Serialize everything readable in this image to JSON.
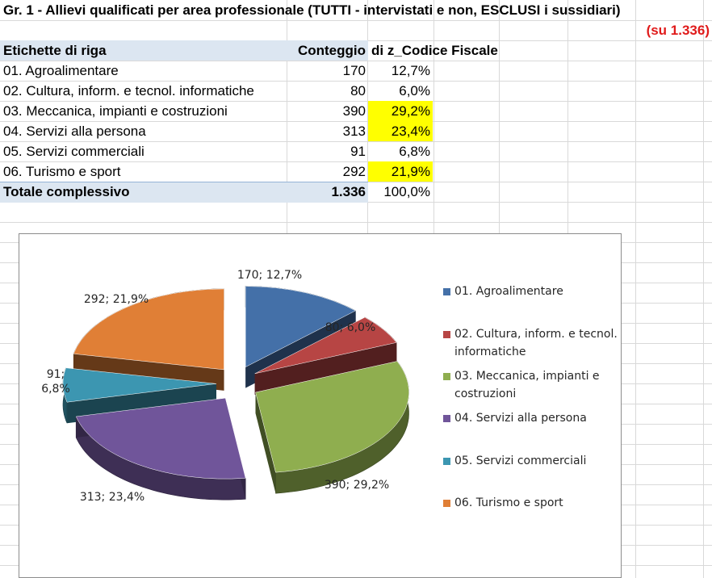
{
  "sheet": {
    "title": "Gr. 1 - Allievi qualificati per area professionale (TUTTI - intervistati e non, ESCLUSI i sussidiari)",
    "subtitle": "(su 1.336)"
  },
  "pivot": {
    "headers": [
      "Etichette di riga",
      "Conteggio",
      "di z_Codice Fiscale"
    ],
    "rows": [
      {
        "label": "01. Agroalimentare",
        "count": "170",
        "pct": "12,7%",
        "highlight": false
      },
      {
        "label": "02. Cultura, inform. e tecnol. informatiche",
        "count": "80",
        "pct": "6,0%",
        "highlight": false
      },
      {
        "label": "03. Meccanica, impianti e costruzioni",
        "count": "390",
        "pct": "29,2%",
        "highlight": true
      },
      {
        "label": "04. Servizi alla persona",
        "count": "313",
        "pct": "23,4%",
        "highlight": true
      },
      {
        "label": "05. Servizi commerciali",
        "count": "91",
        "pct": "6,8%",
        "highlight": false
      },
      {
        "label": "06. Turismo e sport",
        "count": "292",
        "pct": "21,9%",
        "highlight": true
      }
    ],
    "total": {
      "label": "Totale complessivo",
      "count": "1.336",
      "pct": "100,0%"
    },
    "highlight_color": "#ffff00"
  },
  "chart_data": {
    "type": "pie",
    "style": "3d-exploded",
    "categories": [
      "01. Agroalimentare",
      "02. Cultura, inform. e tecnol. informatiche",
      "03. Meccanica, impianti e costruzioni",
      "04. Servizi alla persona",
      "05. Servizi commerciali",
      "06. Turismo e sport"
    ],
    "values": [
      170,
      80,
      390,
      313,
      91,
      292
    ],
    "percentages": [
      12.7,
      6.0,
      29.2,
      23.4,
      6.8,
      21.9
    ],
    "data_labels": [
      "170; 12,7%",
      "80; 6,0%",
      "390; 29,2%",
      "313; 23,4%",
      "91;\n6,8%",
      "292; 21,9%"
    ],
    "colors": [
      "#4470a8",
      "#b74544",
      "#8fae4f",
      "#70559a",
      "#3c96b1",
      "#e07f36"
    ],
    "legend_position": "right"
  }
}
